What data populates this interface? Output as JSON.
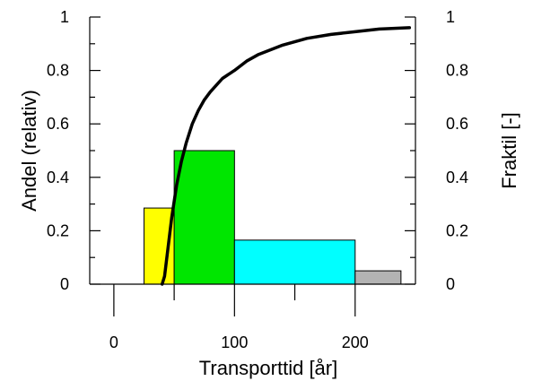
{
  "chart_data": {
    "type": "bar",
    "xlabel": "Transporttid [år]",
    "ylabel": "Andel (relativ)",
    "y2label": "Fraktil [-]",
    "xlim": [
      -20,
      250
    ],
    "ylim": [
      0,
      1
    ],
    "y2lim": [
      0,
      1
    ],
    "x_ticks": [
      "0",
      "100",
      "200"
    ],
    "y_ticks": [
      "0",
      "0.2",
      "0.4",
      "0.6",
      "0.8",
      "1"
    ],
    "y2_ticks": [
      "0",
      "0.2",
      "0.4",
      "0.6",
      "0.8",
      "1"
    ],
    "grid": false,
    "legend": "none",
    "bars": [
      {
        "x0": 25,
        "x1": 50,
        "value": 0.285,
        "color": "#ffff00"
      },
      {
        "x0": 50,
        "x1": 100,
        "value": 0.5,
        "color": "#00e600"
      },
      {
        "x0": 100,
        "x1": 200,
        "value": 0.165,
        "color": "#00ffff"
      },
      {
        "x0": 200,
        "x1": 238,
        "value": 0.05,
        "color": "#b3b3b3"
      }
    ],
    "cumulative": {
      "axis": "right",
      "color": "#000000",
      "x": [
        40,
        42,
        45,
        48,
        52,
        56,
        60,
        65,
        70,
        75,
        80,
        90,
        100,
        110,
        120,
        140,
        160,
        180,
        200,
        220,
        245
      ],
      "y": [
        0.0,
        0.03,
        0.14,
        0.25,
        0.37,
        0.46,
        0.53,
        0.6,
        0.65,
        0.69,
        0.72,
        0.77,
        0.8,
        0.835,
        0.86,
        0.895,
        0.92,
        0.935,
        0.945,
        0.955,
        0.96
      ]
    }
  }
}
